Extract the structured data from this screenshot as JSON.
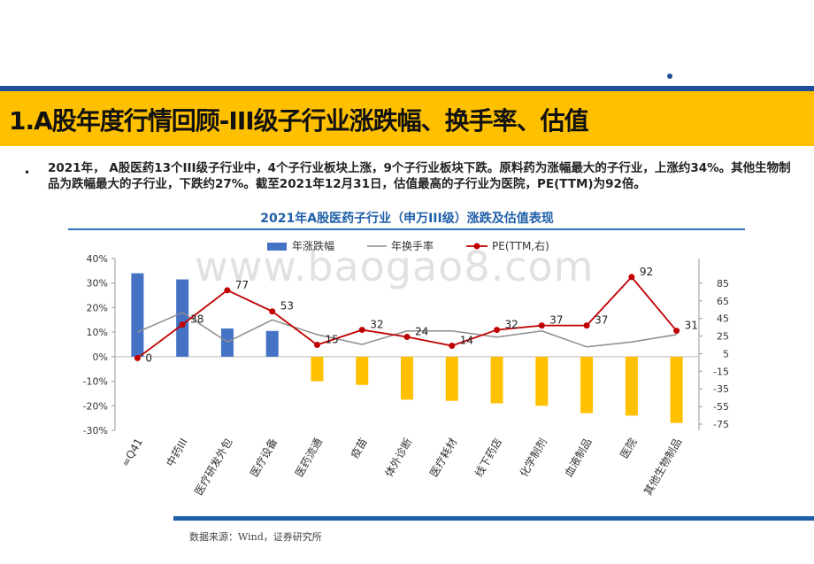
{
  "slide": {
    "title": "1.A股年度行情回顾-III级子行业涨跌幅、换手率、估值",
    "bullet": "•",
    "summary": "2021年， A股医药13个III级子行业中，4个子行业板块上涨，9个子行业板块下跌。原料药为涨幅最大的子行业，上涨约34%。其他生物制品为跌幅最大的子行业，下跌约27%。截至2021年12月31日，估值最高的子行业为医院，PE(TTM)为92倍。",
    "chart_title": "2021年A股医药子行业（申万III级）涨跌及估值表现",
    "watermark": "www.baogao8.com",
    "source": "数据来源：Wind，证券研究所"
  },
  "colors": {
    "positive_bar": "#4472c4",
    "negative_bar": "#ffc000",
    "turnover_line": "#8c8c8c",
    "pe_line": "#c00000",
    "accent_blue": "#1f4e9a",
    "title_band": "#ffc000"
  },
  "chart_data": {
    "type": "bar",
    "categories": [
      "=Q41",
      "中药III",
      "医疗研发外包",
      "医疗设备",
      "医药流通",
      "疫苗",
      "体外诊断",
      "医疗耗材",
      "线下药店",
      "化学制剂",
      "血液制品",
      "医院",
      "其他生物制品"
    ],
    "series": [
      {
        "name": "年涨跌幅",
        "type": "bar",
        "axis": "left",
        "unit": "%",
        "values": [
          34,
          31.5,
          11.5,
          10.5,
          -10,
          -11.5,
          -17.5,
          -18,
          -19,
          -20,
          -23,
          -24,
          -27
        ]
      },
      {
        "name": "年换手率",
        "type": "line",
        "axis": "left",
        "unit": "%",
        "values": [
          10,
          18,
          6,
          15,
          9,
          5,
          10.5,
          10.5,
          8,
          10.5,
          4,
          6,
          9
        ]
      },
      {
        "name": "PE(TTM,右)",
        "type": "line",
        "axis": "right",
        "values": [
          0,
          38,
          77,
          53,
          15,
          32,
          24,
          14,
          32,
          37,
          37,
          92,
          31
        ],
        "labels": [
          "0",
          "38",
          "77",
          "53",
          "15",
          "32",
          "24",
          "14",
          "32",
          "37",
          "37",
          "92",
          "31"
        ]
      }
    ],
    "left_axis": {
      "ylim": [
        -30,
        40
      ],
      "ticks": [
        "40%",
        "30%",
        "20%",
        "10%",
        "0%",
        "-10%",
        "-20%",
        "-30%"
      ],
      "tick_values": [
        40,
        30,
        20,
        10,
        0,
        -10,
        -20,
        -30
      ]
    },
    "right_axis": {
      "ylim": [
        -82,
        113
      ],
      "ticks": [
        "85",
        "65",
        "45",
        "25",
        "5",
        "-15",
        "-35",
        "-55",
        "-75"
      ],
      "tick_values": [
        85,
        65,
        45,
        25,
        5,
        -15,
        -35,
        -55,
        -75
      ]
    },
    "legend": {
      "placement": "top",
      "entries": [
        "年涨跌幅",
        "年换手率",
        "PE(TTM,右)"
      ]
    },
    "grid": false
  }
}
